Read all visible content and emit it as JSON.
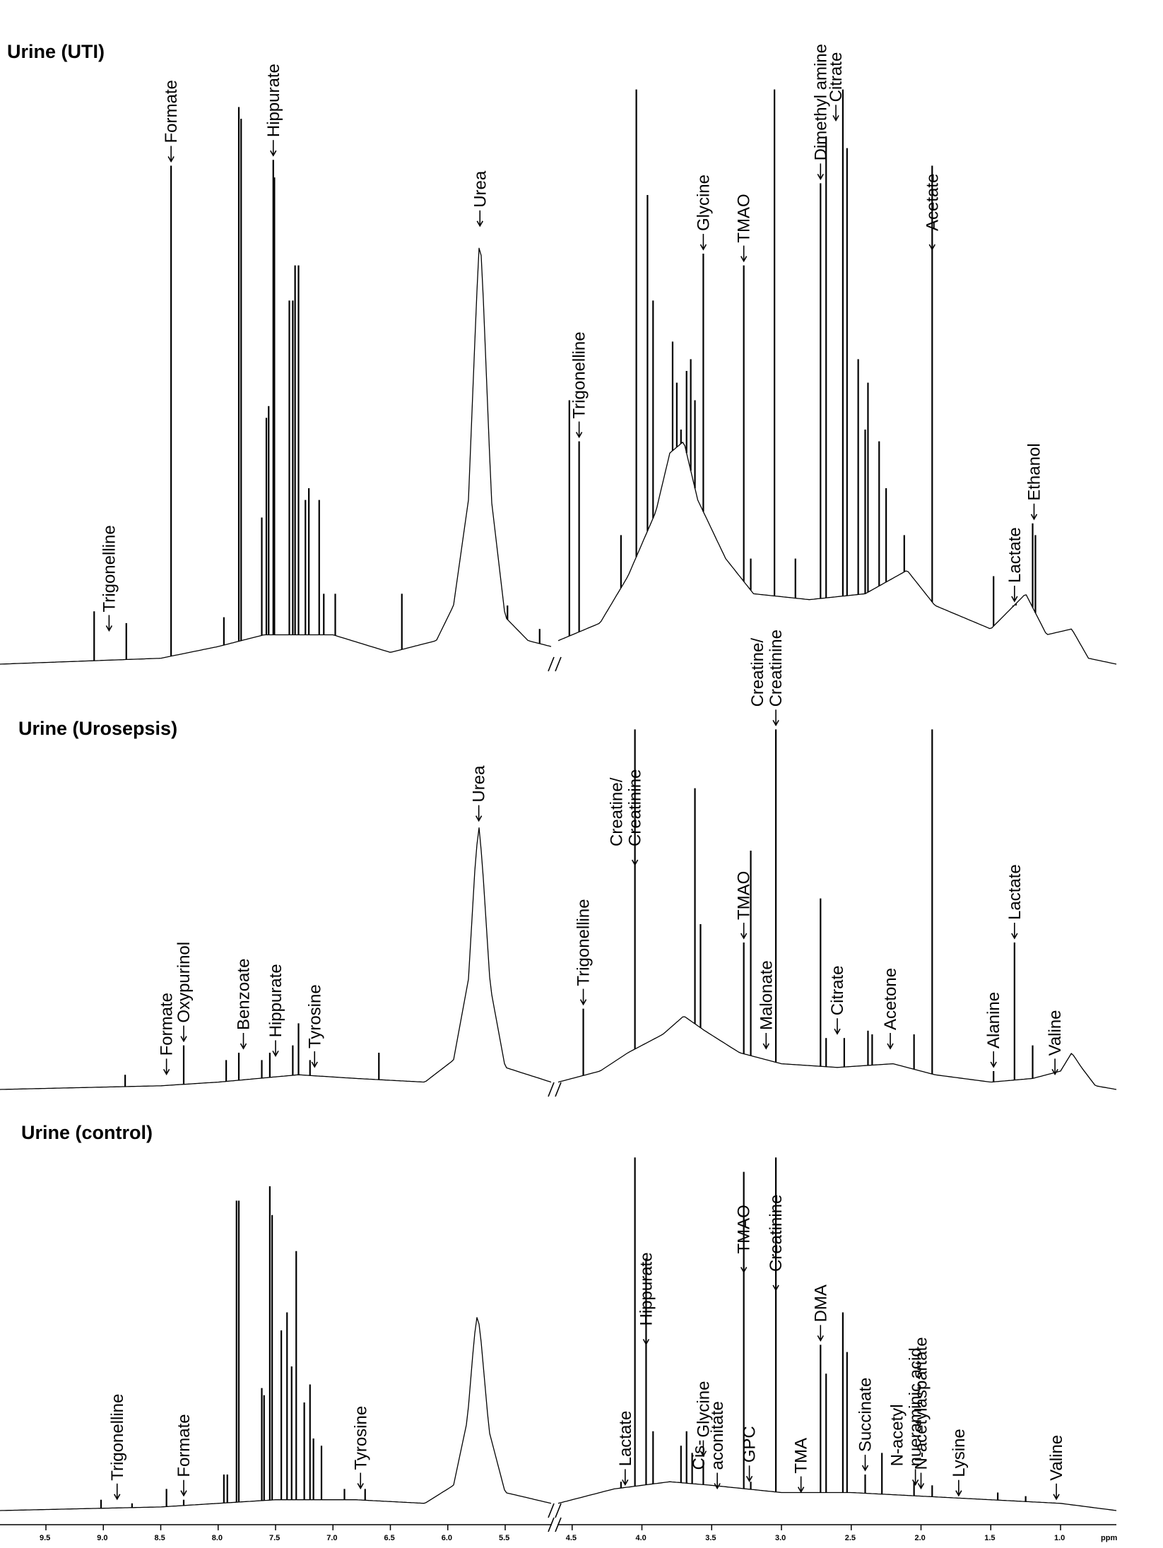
{
  "chart_data": [
    {
      "type": "line",
      "title": "Urine (UTI)",
      "xlabel": "ppm",
      "xlim": [
        9.9,
        0.6
      ],
      "axis_break": [
        5.1,
        4.6
      ],
      "baseline": [
        {
          "ppm": 9.9,
          "h": 0.0
        },
        {
          "ppm": 8.5,
          "h": 0.01
        },
        {
          "ppm": 8.0,
          "h": 0.03
        },
        {
          "ppm": 7.6,
          "h": 0.05
        },
        {
          "ppm": 7.0,
          "h": 0.05
        },
        {
          "ppm": 6.5,
          "h": 0.02
        },
        {
          "ppm": 6.1,
          "h": 0.04
        },
        {
          "ppm": 5.95,
          "h": 0.1
        },
        {
          "ppm": 5.82,
          "h": 0.28
        },
        {
          "ppm": 5.75,
          "h": 0.62
        },
        {
          "ppm": 5.72,
          "h": 0.74
        },
        {
          "ppm": 5.69,
          "h": 0.62
        },
        {
          "ppm": 5.62,
          "h": 0.28
        },
        {
          "ppm": 5.5,
          "h": 0.08
        },
        {
          "ppm": 5.3,
          "h": 0.04
        },
        {
          "ppm": 5.1,
          "h": 0.03
        },
        {
          "ppm": 4.6,
          "h": 0.04
        },
        {
          "ppm": 4.3,
          "h": 0.07
        },
        {
          "ppm": 4.1,
          "h": 0.15
        },
        {
          "ppm": 3.9,
          "h": 0.26
        },
        {
          "ppm": 3.8,
          "h": 0.36
        },
        {
          "ppm": 3.7,
          "h": 0.38
        },
        {
          "ppm": 3.6,
          "h": 0.28
        },
        {
          "ppm": 3.4,
          "h": 0.18
        },
        {
          "ppm": 3.2,
          "h": 0.12
        },
        {
          "ppm": 2.8,
          "h": 0.11
        },
        {
          "ppm": 2.4,
          "h": 0.12
        },
        {
          "ppm": 2.1,
          "h": 0.16
        },
        {
          "ppm": 1.9,
          "h": 0.1
        },
        {
          "ppm": 1.5,
          "h": 0.06
        },
        {
          "ppm": 1.25,
          "h": 0.12
        },
        {
          "ppm": 1.1,
          "h": 0.05
        },
        {
          "ppm": 0.92,
          "h": 0.06
        },
        {
          "ppm": 0.8,
          "h": 0.01
        },
        {
          "ppm": 0.6,
          "h": 0.0
        }
      ],
      "peaks": [
        {
          "ppm": 9.08,
          "h": 0.09
        },
        {
          "ppm": 8.8,
          "h": 0.07
        },
        {
          "ppm": 8.41,
          "h": 0.85
        },
        {
          "ppm": 7.95,
          "h": 0.08
        },
        {
          "ppm": 7.82,
          "h": 0.95
        },
        {
          "ppm": 7.8,
          "h": 0.93
        },
        {
          "ppm": 7.62,
          "h": 0.25
        },
        {
          "ppm": 7.58,
          "h": 0.42
        },
        {
          "ppm": 7.56,
          "h": 0.44
        },
        {
          "ppm": 7.52,
          "h": 0.86
        },
        {
          "ppm": 7.51,
          "h": 0.83
        },
        {
          "ppm": 7.38,
          "h": 0.62
        },
        {
          "ppm": 7.35,
          "h": 0.62
        },
        {
          "ppm": 7.33,
          "h": 0.68
        },
        {
          "ppm": 7.3,
          "h": 0.68
        },
        {
          "ppm": 7.24,
          "h": 0.28
        },
        {
          "ppm": 7.21,
          "h": 0.3
        },
        {
          "ppm": 7.12,
          "h": 0.28
        },
        {
          "ppm": 7.08,
          "h": 0.12
        },
        {
          "ppm": 6.98,
          "h": 0.12
        },
        {
          "ppm": 6.4,
          "h": 0.12
        },
        {
          "ppm": 5.48,
          "h": 0.1
        },
        {
          "ppm": 5.2,
          "h": 0.06
        },
        {
          "ppm": 4.52,
          "h": 0.45
        },
        {
          "ppm": 4.45,
          "h": 0.38
        },
        {
          "ppm": 4.15,
          "h": 0.22
        },
        {
          "ppm": 4.04,
          "h": 0.98
        },
        {
          "ppm": 3.96,
          "h": 0.8
        },
        {
          "ppm": 3.92,
          "h": 0.62
        },
        {
          "ppm": 3.78,
          "h": 0.55
        },
        {
          "ppm": 3.75,
          "h": 0.48
        },
        {
          "ppm": 3.72,
          "h": 0.4
        },
        {
          "ppm": 3.68,
          "h": 0.5
        },
        {
          "ppm": 3.65,
          "h": 0.52
        },
        {
          "ppm": 3.62,
          "h": 0.45
        },
        {
          "ppm": 3.56,
          "h": 0.7
        },
        {
          "ppm": 3.27,
          "h": 0.68
        },
        {
          "ppm": 3.22,
          "h": 0.18
        },
        {
          "ppm": 3.05,
          "h": 0.98
        },
        {
          "ppm": 2.9,
          "h": 0.18
        },
        {
          "ppm": 2.72,
          "h": 0.82
        },
        {
          "ppm": 2.68,
          "h": 0.9
        },
        {
          "ppm": 2.56,
          "h": 0.98
        },
        {
          "ppm": 2.53,
          "h": 0.88
        },
        {
          "ppm": 2.45,
          "h": 0.52
        },
        {
          "ppm": 2.4,
          "h": 0.4
        },
        {
          "ppm": 2.38,
          "h": 0.48
        },
        {
          "ppm": 2.3,
          "h": 0.38
        },
        {
          "ppm": 2.25,
          "h": 0.3
        },
        {
          "ppm": 2.12,
          "h": 0.22
        },
        {
          "ppm": 1.92,
          "h": 0.85
        },
        {
          "ppm": 1.48,
          "h": 0.15
        },
        {
          "ppm": 1.34,
          "h": 0.1
        },
        {
          "ppm": 1.32,
          "h": 0.1
        },
        {
          "ppm": 1.2,
          "h": 0.24
        },
        {
          "ppm": 1.18,
          "h": 0.22
        }
      ],
      "labels": [
        {
          "text": "Trigonelline",
          "ppm": 8.95,
          "h": 0.05
        },
        {
          "text": "Formate",
          "ppm": 8.41,
          "h": 0.85
        },
        {
          "text": "Hippurate",
          "ppm": 7.52,
          "h": 0.86
        },
        {
          "text": "Urea",
          "ppm": 5.72,
          "h": 0.74
        },
        {
          "text": "Trigonelline",
          "ppm": 4.45,
          "h": 0.38
        },
        {
          "text": "Glycine",
          "ppm": 3.56,
          "h": 0.7
        },
        {
          "text": "TMAO",
          "ppm": 3.27,
          "h": 0.68
        },
        {
          "text": "Dimethyl amine",
          "ppm": 2.72,
          "h": 0.82
        },
        {
          "text": "Citrate",
          "ppm": 2.61,
          "h": 0.92
        },
        {
          "text": "Acetate",
          "ppm": 1.92,
          "h": 0.7
        },
        {
          "text": "Lactate",
          "ppm": 1.33,
          "h": 0.1
        },
        {
          "text": "Ethanol",
          "ppm": 1.19,
          "h": 0.24
        }
      ]
    },
    {
      "type": "line",
      "title": "Urine (Urosepsis)",
      "xlabel": "ppm",
      "xlim": [
        9.9,
        0.6
      ],
      "axis_break": [
        5.1,
        4.6
      ],
      "baseline": [
        {
          "ppm": 9.9,
          "h": 0.0
        },
        {
          "ppm": 8.5,
          "h": 0.01
        },
        {
          "ppm": 8.0,
          "h": 0.02
        },
        {
          "ppm": 7.3,
          "h": 0.04
        },
        {
          "ppm": 6.8,
          "h": 0.03
        },
        {
          "ppm": 6.2,
          "h": 0.02
        },
        {
          "ppm": 5.95,
          "h": 0.08
        },
        {
          "ppm": 5.82,
          "h": 0.3
        },
        {
          "ppm": 5.76,
          "h": 0.62
        },
        {
          "ppm": 5.73,
          "h": 0.72
        },
        {
          "ppm": 5.7,
          "h": 0.62
        },
        {
          "ppm": 5.63,
          "h": 0.28
        },
        {
          "ppm": 5.5,
          "h": 0.06
        },
        {
          "ppm": 5.1,
          "h": 0.02
        },
        {
          "ppm": 4.6,
          "h": 0.02
        },
        {
          "ppm": 4.3,
          "h": 0.05
        },
        {
          "ppm": 4.1,
          "h": 0.1
        },
        {
          "ppm": 3.85,
          "h": 0.15
        },
        {
          "ppm": 3.7,
          "h": 0.2
        },
        {
          "ppm": 3.55,
          "h": 0.16
        },
        {
          "ppm": 3.3,
          "h": 0.1
        },
        {
          "ppm": 3.0,
          "h": 0.07
        },
        {
          "ppm": 2.6,
          "h": 0.06
        },
        {
          "ppm": 2.2,
          "h": 0.07
        },
        {
          "ppm": 1.9,
          "h": 0.04
        },
        {
          "ppm": 1.5,
          "h": 0.02
        },
        {
          "ppm": 1.2,
          "h": 0.03
        },
        {
          "ppm": 1.0,
          "h": 0.05
        },
        {
          "ppm": 0.92,
          "h": 0.1
        },
        {
          "ppm": 0.85,
          "h": 0.06
        },
        {
          "ppm": 0.75,
          "h": 0.01
        },
        {
          "ppm": 0.6,
          "h": 0.0
        }
      ],
      "peaks": [
        {
          "ppm": 8.81,
          "h": 0.04
        },
        {
          "ppm": 8.3,
          "h": 0.12
        },
        {
          "ppm": 7.93,
          "h": 0.08
        },
        {
          "ppm": 7.82,
          "h": 0.1
        },
        {
          "ppm": 7.62,
          "h": 0.08
        },
        {
          "ppm": 7.55,
          "h": 0.1
        },
        {
          "ppm": 7.35,
          "h": 0.12
        },
        {
          "ppm": 7.3,
          "h": 0.18
        },
        {
          "ppm": 7.2,
          "h": 0.08
        },
        {
          "ppm": 6.6,
          "h": 0.1
        },
        {
          "ppm": 4.42,
          "h": 0.22
        },
        {
          "ppm": 4.05,
          "h": 0.98
        },
        {
          "ppm": 3.62,
          "h": 0.82
        },
        {
          "ppm": 3.58,
          "h": 0.45
        },
        {
          "ppm": 3.27,
          "h": 0.4
        },
        {
          "ppm": 3.22,
          "h": 0.65
        },
        {
          "ppm": 3.04,
          "h": 0.98
        },
        {
          "ppm": 2.72,
          "h": 0.52
        },
        {
          "ppm": 2.68,
          "h": 0.14
        },
        {
          "ppm": 2.55,
          "h": 0.14
        },
        {
          "ppm": 2.38,
          "h": 0.16
        },
        {
          "ppm": 2.35,
          "h": 0.15
        },
        {
          "ppm": 2.05,
          "h": 0.15
        },
        {
          "ppm": 1.92,
          "h": 0.98
        },
        {
          "ppm": 1.48,
          "h": 0.05
        },
        {
          "ppm": 1.33,
          "h": 0.4
        },
        {
          "ppm": 1.2,
          "h": 0.12
        }
      ],
      "labels": [
        {
          "text": "Formate",
          "ppm": 8.45,
          "h": 0.03
        },
        {
          "text": "Oxypurinol",
          "ppm": 8.3,
          "h": 0.12
        },
        {
          "text": "Benzoate",
          "ppm": 7.78,
          "h": 0.1
        },
        {
          "text": "Hippurate",
          "ppm": 7.5,
          "h": 0.08
        },
        {
          "text": "Tyrosine",
          "ppm": 7.16,
          "h": 0.05
        },
        {
          "text": "Urea",
          "ppm": 5.73,
          "h": 0.72
        },
        {
          "text": "Trigonelline",
          "ppm": 4.42,
          "h": 0.22
        },
        {
          "text": "Creatine/\nCreatinine",
          "ppm": 4.05,
          "h": 0.6
        },
        {
          "text": "TMAO",
          "ppm": 3.27,
          "h": 0.4
        },
        {
          "text": "Malonate",
          "ppm": 3.11,
          "h": 0.1
        },
        {
          "text": "Creatine/\nCreatinine",
          "ppm": 3.04,
          "h": 0.98
        },
        {
          "text": "Citrate",
          "ppm": 2.6,
          "h": 0.14
        },
        {
          "text": "Acetone",
          "ppm": 2.22,
          "h": 0.1
        },
        {
          "text": "Alanine",
          "ppm": 1.48,
          "h": 0.05
        },
        {
          "text": "Lactate",
          "ppm": 1.33,
          "h": 0.4
        },
        {
          "text": "Valine",
          "ppm": 1.04,
          "h": 0.03
        }
      ]
    },
    {
      "type": "line",
      "title": "Urine (control)",
      "xlabel": "ppm",
      "xlim": [
        9.9,
        0.6
      ],
      "axis_break": [
        5.1,
        4.6
      ],
      "ticks": [
        9.5,
        9.0,
        8.5,
        8.0,
        7.5,
        7.0,
        6.5,
        6.0,
        5.5,
        4.5,
        4.0,
        3.5,
        3.0,
        2.5,
        2.0,
        1.5,
        1.0
      ],
      "tick_labels": [
        "9.5",
        "9.0",
        "8.5",
        "8.0",
        "7.5",
        "7.0",
        "6.5",
        "6.0",
        "5.5",
        "4.5",
        "4.0",
        "3.5",
        "3.0",
        "2.5",
        "2.0",
        "1.5",
        "1.0"
      ],
      "baseline": [
        {
          "ppm": 9.9,
          "h": 0.0
        },
        {
          "ppm": 8.5,
          "h": 0.01
        },
        {
          "ppm": 8.0,
          "h": 0.02
        },
        {
          "ppm": 7.5,
          "h": 0.03
        },
        {
          "ppm": 6.8,
          "h": 0.03
        },
        {
          "ppm": 6.2,
          "h": 0.02
        },
        {
          "ppm": 5.95,
          "h": 0.07
        },
        {
          "ppm": 5.83,
          "h": 0.25
        },
        {
          "ppm": 5.77,
          "h": 0.48
        },
        {
          "ppm": 5.74,
          "h": 0.55
        },
        {
          "ppm": 5.71,
          "h": 0.47
        },
        {
          "ppm": 5.64,
          "h": 0.22
        },
        {
          "ppm": 5.5,
          "h": 0.05
        },
        {
          "ppm": 5.1,
          "h": 0.02
        },
        {
          "ppm": 4.6,
          "h": 0.02
        },
        {
          "ppm": 4.2,
          "h": 0.06
        },
        {
          "ppm": 3.8,
          "h": 0.08
        },
        {
          "ppm": 3.5,
          "h": 0.07
        },
        {
          "ppm": 3.0,
          "h": 0.05
        },
        {
          "ppm": 2.5,
          "h": 0.05
        },
        {
          "ppm": 2.0,
          "h": 0.04
        },
        {
          "ppm": 1.5,
          "h": 0.03
        },
        {
          "ppm": 1.0,
          "h": 0.02
        },
        {
          "ppm": 0.6,
          "h": 0.0
        }
      ],
      "peaks": [
        {
          "ppm": 9.02,
          "h": 0.03
        },
        {
          "ppm": 8.75,
          "h": 0.02
        },
        {
          "ppm": 8.45,
          "h": 0.06
        },
        {
          "ppm": 8.3,
          "h": 0.03
        },
        {
          "ppm": 7.95,
          "h": 0.1
        },
        {
          "ppm": 7.92,
          "h": 0.1
        },
        {
          "ppm": 7.84,
          "h": 0.86
        },
        {
          "ppm": 7.82,
          "h": 0.86
        },
        {
          "ppm": 7.62,
          "h": 0.34
        },
        {
          "ppm": 7.6,
          "h": 0.32
        },
        {
          "ppm": 7.55,
          "h": 0.9
        },
        {
          "ppm": 7.53,
          "h": 0.82
        },
        {
          "ppm": 7.45,
          "h": 0.5
        },
        {
          "ppm": 7.4,
          "h": 0.55
        },
        {
          "ppm": 7.36,
          "h": 0.4
        },
        {
          "ppm": 7.32,
          "h": 0.72
        },
        {
          "ppm": 7.25,
          "h": 0.3
        },
        {
          "ppm": 7.2,
          "h": 0.35
        },
        {
          "ppm": 7.17,
          "h": 0.2
        },
        {
          "ppm": 7.1,
          "h": 0.18
        },
        {
          "ppm": 6.9,
          "h": 0.06
        },
        {
          "ppm": 6.72,
          "h": 0.06
        },
        {
          "ppm": 4.15,
          "h": 0.08
        },
        {
          "ppm": 4.05,
          "h": 0.98
        },
        {
          "ppm": 3.97,
          "h": 0.7
        },
        {
          "ppm": 3.92,
          "h": 0.22
        },
        {
          "ppm": 3.72,
          "h": 0.18
        },
        {
          "ppm": 3.68,
          "h": 0.22
        },
        {
          "ppm": 3.64,
          "h": 0.16
        },
        {
          "ppm": 3.56,
          "h": 0.14
        },
        {
          "ppm": 3.27,
          "h": 0.94
        },
        {
          "ppm": 3.22,
          "h": 0.08
        },
        {
          "ppm": 3.04,
          "h": 0.98
        },
        {
          "ppm": 2.72,
          "h": 0.46
        },
        {
          "ppm": 2.68,
          "h": 0.38
        },
        {
          "ppm": 2.56,
          "h": 0.55
        },
        {
          "ppm": 2.53,
          "h": 0.44
        },
        {
          "ppm": 2.4,
          "h": 0.1
        },
        {
          "ppm": 2.28,
          "h": 0.16
        },
        {
          "ppm": 2.05,
          "h": 0.08
        },
        {
          "ppm": 1.92,
          "h": 0.07
        },
        {
          "ppm": 1.45,
          "h": 0.05
        },
        {
          "ppm": 1.25,
          "h": 0.04
        }
      ],
      "labels": [
        {
          "text": "Trigonelline",
          "ppm": 8.88,
          "h": 0.02
        },
        {
          "text": "Formate",
          "ppm": 8.3,
          "h": 0.03
        },
        {
          "text": "Tyrosine",
          "ppm": 6.76,
          "h": 0.05
        },
        {
          "text": "Lactate",
          "ppm": 4.12,
          "h": 0.06
        },
        {
          "text": "Hippurate",
          "ppm": 3.97,
          "h": 0.45
        },
        {
          "text": "Glycine",
          "ppm": 3.56,
          "h": 0.14
        },
        {
          "text": "Cis-\naconitate",
          "ppm": 3.46,
          "h": 0.05
        },
        {
          "text": "TMAO",
          "ppm": 3.27,
          "h": 0.65
        },
        {
          "text": "GPC",
          "ppm": 3.23,
          "h": 0.07
        },
        {
          "text": "Creatinine",
          "ppm": 3.04,
          "h": 0.6
        },
        {
          "text": "TMA",
          "ppm": 2.86,
          "h": 0.04
        },
        {
          "text": "DMA",
          "ppm": 2.72,
          "h": 0.46
        },
        {
          "text": "Succinate",
          "ppm": 2.4,
          "h": 0.1
        },
        {
          "text": "N-acetyl\nnueraminic acid",
          "ppm": 2.04,
          "h": 0.06
        },
        {
          "text": "N-acetylaspartate",
          "ppm": 2.0,
          "h": 0.05
        },
        {
          "text": "Lysine",
          "ppm": 1.73,
          "h": 0.03
        },
        {
          "text": "Valine",
          "ppm": 1.03,
          "h": 0.02
        }
      ],
      "axis_unit": "ppm"
    }
  ]
}
